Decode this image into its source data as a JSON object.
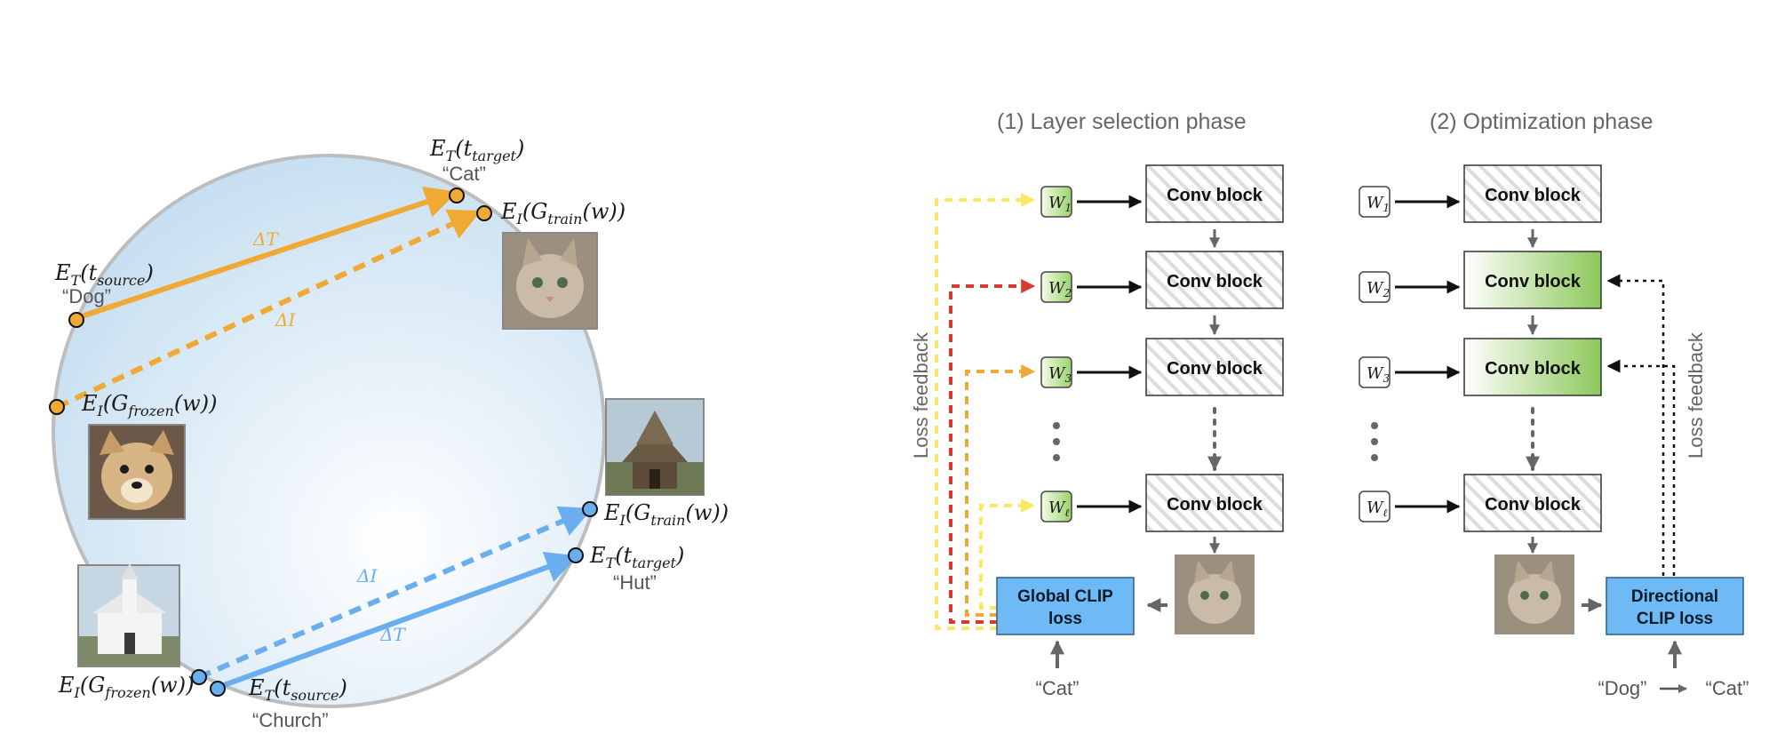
{
  "colors": {
    "orange": "#f0a935",
    "blue": "#6aaef0",
    "yellow": "#f7e964",
    "red": "#d63b2f",
    "green_end": "#8cc85a",
    "loss_box": "#6fbaf5",
    "circle_stroke": "#bdbdbd"
  },
  "left": {
    "target_text_label": "“Cat”",
    "source_text_label": "“Dog”",
    "source_text_label_2": "“Church”",
    "target_text_label_2": "“Hut”",
    "delta_T": "ΔT",
    "delta_I": "ΔI",
    "images": [
      "cat-image-icon",
      "dog-image-icon",
      "hut-image-icon",
      "church-image-icon"
    ]
  },
  "phase1": {
    "title": "(1) Layer selection phase",
    "conv_label": "Conv block",
    "loss_line1": "Global CLIP",
    "loss_line2": "loss",
    "prompt": "“Cat”",
    "feedback": "Loss feedback"
  },
  "phase2": {
    "title": "(2) Optimization phase",
    "conv_label": "Conv block",
    "loss_line1": "Directional",
    "loss_line2": "CLIP loss",
    "prompt_from": "“Dog”",
    "prompt_to": "“Cat”",
    "feedback": "Loss feedback"
  }
}
